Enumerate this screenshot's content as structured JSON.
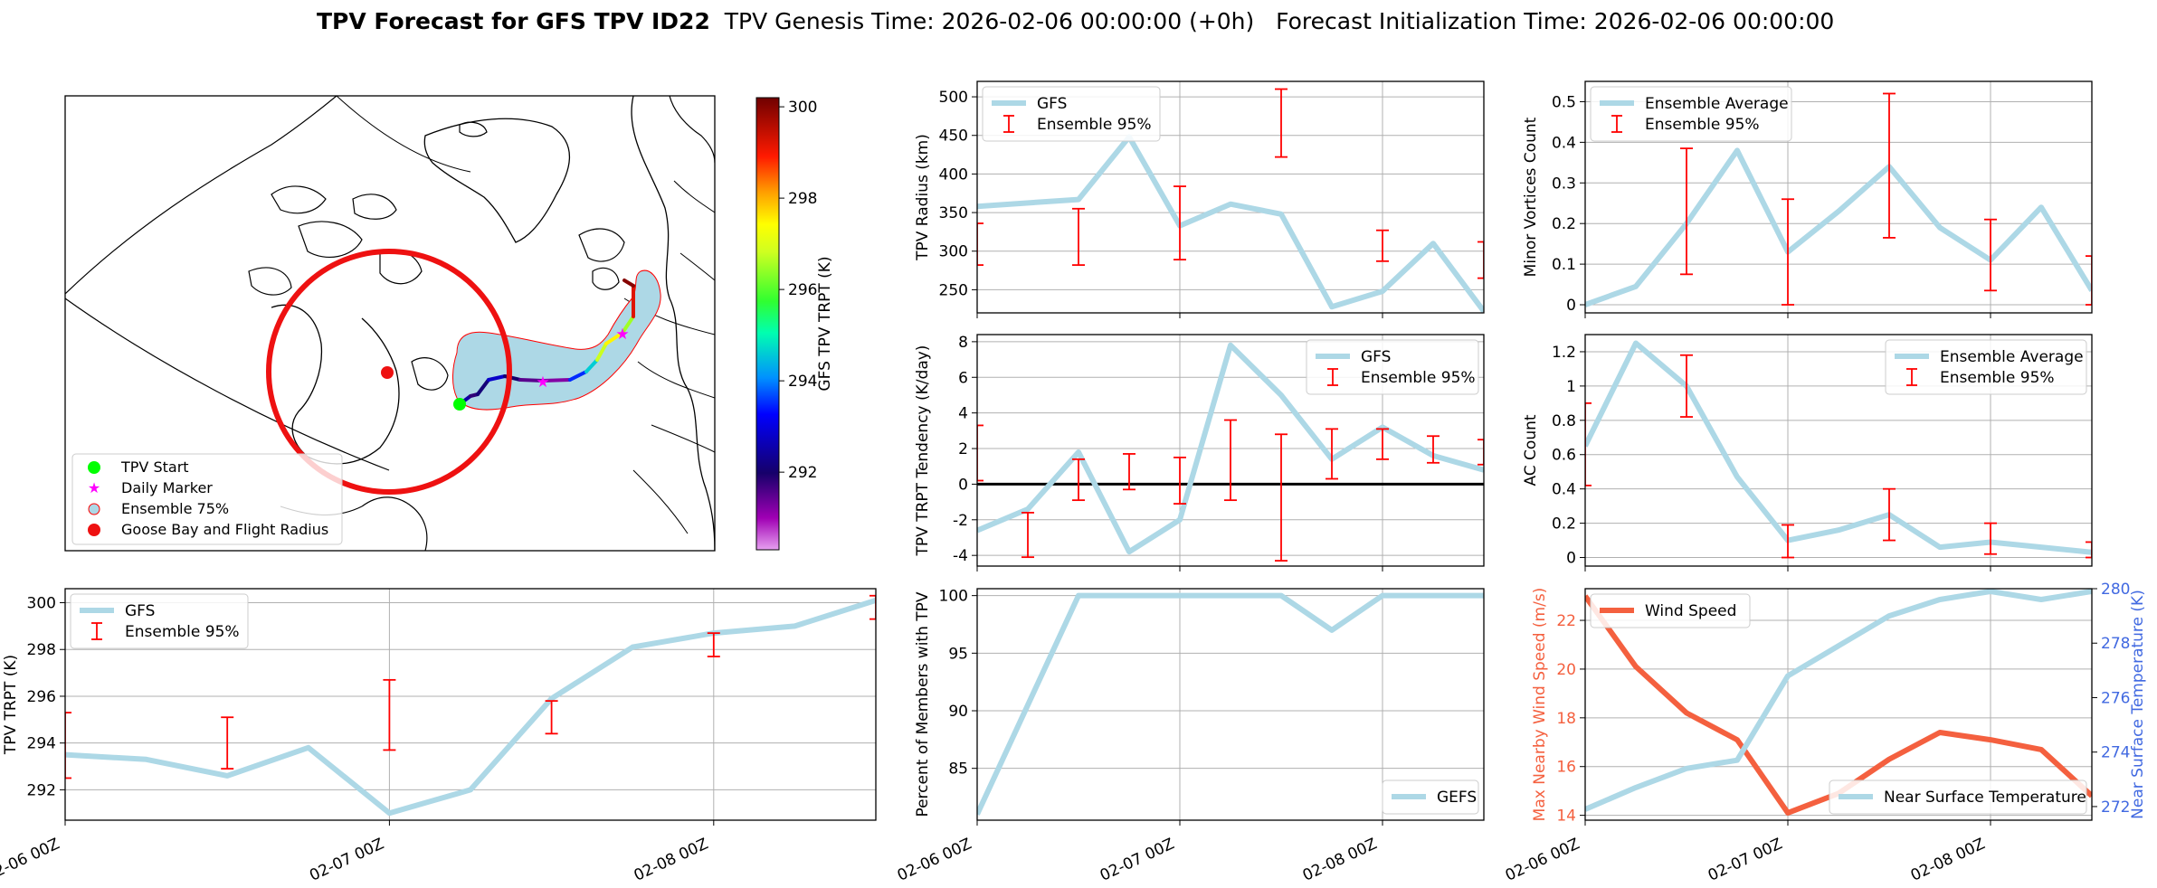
{
  "figure": {
    "title_bold": "TPV Forecast for GFS TPV ID22",
    "title_rest": "  TPV Genesis Time: 2026-02-06 00:00:00 (+0h)   Forecast Initialization Time: 2026-02-06 00:00:00",
    "x_tick_labels": [
      "02-06 00Z",
      "02-07 00Z",
      "02-08 00Z"
    ]
  },
  "colors": {
    "gfs_line": "#add8e6",
    "errorbar": "#ff0000",
    "wind": "#f4603f",
    "temperature_axis": "#4169e1",
    "fill": "#add8e6"
  },
  "map": {
    "legend": [
      "TPV Start",
      "Daily Marker",
      "Ensemble 75%",
      "Goose Bay and Flight Radius"
    ],
    "colorbar": {
      "label": "GFS TPV TRPT (K)",
      "ticks": [
        292,
        294,
        296,
        298,
        300
      ],
      "range": [
        290.3,
        300.2
      ]
    },
    "track_values": [
      293.8,
      292.5,
      291.8,
      292.1,
      292.8,
      292.0,
      291.5,
      291.2,
      293.5,
      294.6,
      296.8,
      297.5,
      296.5,
      299.2,
      300.0
    ],
    "icons": [
      "tpv-start-marker-icon",
      "daily-marker-star-icon",
      "ensemble-patch-icon",
      "goose-bay-marker-icon"
    ]
  },
  "chart_data": [
    {
      "id": "radius",
      "type": "line",
      "ylabel": "TPV Radius (km)",
      "ylim": [
        220,
        520
      ],
      "yticks": [
        250,
        300,
        350,
        400,
        450,
        500
      ],
      "legend": [
        "GFS",
        "Ensemble 95%"
      ],
      "legend_loc": "upper-left",
      "series": [
        {
          "name": "GFS",
          "x": [
            0,
            0.5,
            0.75,
            1,
            1.25,
            1.5,
            1.75,
            2,
            2.25,
            2.5
          ],
          "y": [
            358,
            367,
            448,
            333,
            361,
            348,
            228,
            248,
            310,
            222
          ]
        }
      ],
      "errorbars": [
        {
          "x": 0,
          "low": 282,
          "high": 336
        },
        {
          "x": 0.5,
          "low": 282,
          "high": 355
        },
        {
          "x": 1,
          "low": 289,
          "high": 384
        },
        {
          "x": 1.5,
          "low": 422,
          "high": 510
        },
        {
          "x": 2,
          "low": 287,
          "high": 327
        },
        {
          "x": 2.5,
          "low": 265,
          "high": 312
        }
      ]
    },
    {
      "id": "minor",
      "type": "line",
      "ylabel": "Minor Vortices Count",
      "ylim": [
        -0.02,
        0.55
      ],
      "yticks": [
        0.0,
        0.1,
        0.2,
        0.3,
        0.4,
        0.5
      ],
      "legend": [
        "Ensemble Average",
        "Ensemble 95%"
      ],
      "legend_loc": "upper-left",
      "series": [
        {
          "name": "Ensemble Average",
          "x": [
            0,
            0.25,
            0.5,
            0.75,
            1,
            1.25,
            1.5,
            1.75,
            2,
            2.25,
            2.5
          ],
          "y": [
            0.0,
            0.045,
            0.2,
            0.38,
            0.13,
            0.23,
            0.34,
            0.19,
            0.11,
            0.24,
            0.035
          ]
        }
      ],
      "errorbars": [
        {
          "x": 0.5,
          "low": 0.075,
          "high": 0.385
        },
        {
          "x": 1,
          "low": 0.0,
          "high": 0.26
        },
        {
          "x": 1.5,
          "low": 0.165,
          "high": 0.52
        },
        {
          "x": 2,
          "low": 0.035,
          "high": 0.21
        },
        {
          "x": 2.5,
          "low": 0.0,
          "high": 0.12
        }
      ]
    },
    {
      "id": "tendency",
      "type": "line",
      "ylabel": "TPV TRPT Tendency (K/day)",
      "ylim": [
        -4.6,
        8.4
      ],
      "yticks": [
        -4,
        -2,
        0,
        2,
        4,
        6,
        8
      ],
      "legend": [
        "GFS",
        "Ensemble 95%"
      ],
      "legend_loc": "upper-right",
      "zero_line": true,
      "series": [
        {
          "name": "GFS",
          "x": [
            0,
            0.25,
            0.5,
            0.75,
            1,
            1.25,
            1.5,
            1.75,
            2,
            2.25,
            2.5
          ],
          "y": [
            -2.6,
            -1.4,
            1.8,
            -3.8,
            -2.0,
            7.8,
            5.0,
            1.4,
            3.2,
            1.6,
            0.8
          ]
        }
      ],
      "errorbars": [
        {
          "x": 0,
          "low": 0.2,
          "high": 3.3
        },
        {
          "x": 0.25,
          "low": -4.1,
          "high": -1.6
        },
        {
          "x": 0.5,
          "low": -0.9,
          "high": 1.4
        },
        {
          "x": 0.75,
          "low": -0.3,
          "high": 1.7
        },
        {
          "x": 1,
          "low": -1.1,
          "high": 1.5
        },
        {
          "x": 1.25,
          "low": -0.9,
          "high": 3.6
        },
        {
          "x": 1.5,
          "low": -4.3,
          "high": 2.8
        },
        {
          "x": 1.75,
          "low": 0.3,
          "high": 3.1
        },
        {
          "x": 2,
          "low": 1.4,
          "high": 3.1
        },
        {
          "x": 2.25,
          "low": 1.2,
          "high": 2.7
        },
        {
          "x": 2.5,
          "low": 1.1,
          "high": 2.5
        }
      ]
    },
    {
      "id": "ac",
      "type": "line",
      "ylabel": "AC Count",
      "ylim": [
        -0.05,
        1.3
      ],
      "yticks": [
        0.0,
        0.2,
        0.4,
        0.6,
        0.8,
        1.0,
        1.2
      ],
      "legend": [
        "Ensemble Average",
        "Ensemble 95%"
      ],
      "legend_loc": "upper-right",
      "series": [
        {
          "name": "Ensemble Average",
          "x": [
            0,
            0.25,
            0.5,
            0.75,
            1,
            1.25,
            1.5,
            1.75,
            2,
            2.25,
            2.5
          ],
          "y": [
            0.65,
            1.25,
            1.0,
            0.47,
            0.1,
            0.16,
            0.25,
            0.06,
            0.09,
            0.06,
            0.03
          ]
        }
      ],
      "errorbars": [
        {
          "x": 0,
          "low": 0.42,
          "high": 0.9
        },
        {
          "x": 0.5,
          "low": 0.82,
          "high": 1.18
        },
        {
          "x": 1,
          "low": 0.0,
          "high": 0.19
        },
        {
          "x": 1.5,
          "low": 0.1,
          "high": 0.4
        },
        {
          "x": 2,
          "low": 0.02,
          "high": 0.2
        },
        {
          "x": 2.5,
          "low": 0.0,
          "high": 0.09
        }
      ]
    },
    {
      "id": "trpt",
      "type": "line",
      "ylabel": "TPV TRPT (K)",
      "ylim": [
        290.7,
        300.6
      ],
      "yticks": [
        292,
        294,
        296,
        298,
        300
      ],
      "legend": [
        "GFS",
        "Ensemble 95%"
      ],
      "legend_loc": "upper-left",
      "series": [
        {
          "name": "GFS",
          "x": [
            0,
            0.25,
            0.5,
            0.75,
            1,
            1.25,
            1.5,
            1.75,
            2,
            2.25,
            2.5
          ],
          "y": [
            293.5,
            293.3,
            292.6,
            293.8,
            291.0,
            292.0,
            295.9,
            298.1,
            298.7,
            299.0,
            300.1
          ]
        }
      ],
      "errorbars": [
        {
          "x": 0,
          "low": 292.5,
          "high": 295.3
        },
        {
          "x": 0.5,
          "low": 292.9,
          "high": 295.1
        },
        {
          "x": 1,
          "low": 293.7,
          "high": 296.7
        },
        {
          "x": 1.5,
          "low": 294.4,
          "high": 295.8
        },
        {
          "x": 2,
          "low": 297.7,
          "high": 298.7
        },
        {
          "x": 2.5,
          "low": 299.3,
          "high": 300.3
        }
      ]
    },
    {
      "id": "percent",
      "type": "line",
      "ylabel": "Percent of Members with TPV",
      "ylim": [
        80.5,
        100.6
      ],
      "yticks": [
        85,
        90,
        95,
        100
      ],
      "legend": [
        "GEFS"
      ],
      "legend_loc": "lower-right",
      "series": [
        {
          "name": "GEFS",
          "x": [
            0,
            0.5,
            1,
            1.5,
            1.75,
            2,
            2.5
          ],
          "y": [
            81,
            100,
            100,
            100,
            97,
            100,
            100
          ]
        }
      ],
      "errorbars": []
    },
    {
      "id": "wind",
      "type": "line",
      "ylabel": "Max Nearby Wind Speed (m/s)",
      "ylabel2": "Near Surface Temperature (K)",
      "ylim": [
        13.8,
        23.3
      ],
      "yticks": [
        14,
        16,
        18,
        20,
        22
      ],
      "ylim2": [
        271.5,
        280
      ],
      "yticks2": [
        272,
        274,
        276,
        278,
        280
      ],
      "legend": [
        "Wind Speed"
      ],
      "legend2": [
        "Near Surface Temperature"
      ],
      "series": [
        {
          "name": "Wind Speed",
          "axis": "left",
          "x": [
            0,
            0.25,
            0.5,
            0.75,
            1,
            1.25,
            1.5,
            1.75,
            2,
            2.25,
            2.5
          ],
          "y": [
            23.0,
            20.1,
            18.2,
            17.1,
            14.1,
            14.9,
            16.3,
            17.4,
            17.1,
            16.7,
            14.8
          ]
        },
        {
          "name": "Near Surface Temperature",
          "axis": "right",
          "x": [
            0,
            0.25,
            0.5,
            0.75,
            1,
            1.25,
            1.5,
            1.75,
            2,
            2.25,
            2.5
          ],
          "y": [
            271.9,
            272.7,
            273.4,
            273.7,
            276.8,
            277.9,
            279.0,
            279.6,
            279.9,
            279.6,
            279.9
          ]
        }
      ],
      "errorbars": []
    }
  ]
}
